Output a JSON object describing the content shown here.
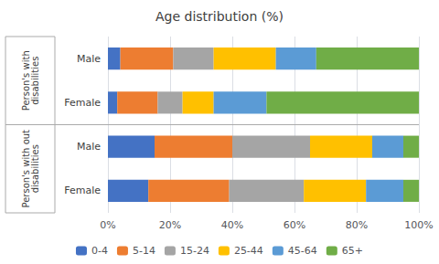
{
  "chart_data": {
    "type": "bar",
    "orientation": "horizontal",
    "stacked": true,
    "title": "Age distribution (%)",
    "categories": [
      "Male",
      "Female",
      "Male",
      "Female"
    ],
    "annotations": [
      "Person's with\ndisabilities",
      "Person's with out\ndisabilities"
    ],
    "series": [
      {
        "name": "0-4",
        "color": "#4472c4",
        "values": [
          4,
          3,
          15,
          13
        ]
      },
      {
        "name": "5-14",
        "color": "#ed7d31",
        "values": [
          17,
          13,
          25,
          26
        ]
      },
      {
        "name": "15-24",
        "color": "#a5a5a5",
        "values": [
          13,
          8,
          25,
          24
        ]
      },
      {
        "name": "25-44",
        "color": "#ffc000",
        "values": [
          20,
          10,
          20,
          20
        ]
      },
      {
        "name": "45-64",
        "color": "#5b9bd5",
        "values": [
          13,
          17,
          10,
          12
        ]
      },
      {
        "name": "65+",
        "color": "#70ad47",
        "values": [
          33,
          49,
          5,
          5
        ]
      }
    ],
    "xlim": [
      0,
      100
    ],
    "xticks": [
      {
        "value": 0,
        "label": "0%"
      },
      {
        "value": 20,
        "label": "20%"
      },
      {
        "value": 40,
        "label": "40%"
      },
      {
        "value": 60,
        "label": "60%"
      },
      {
        "value": 80,
        "label": "80%"
      },
      {
        "value": 100,
        "label": "100%"
      }
    ],
    "grid": true,
    "legend": "bottom"
  }
}
